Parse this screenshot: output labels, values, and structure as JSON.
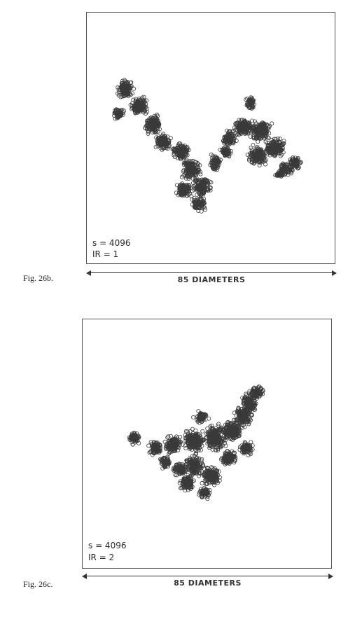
{
  "figures": [
    {
      "id": "26b",
      "label": "Fig. 26b.",
      "s_label": "s = 4096",
      "ir_label": "IR = 1",
      "scale_label": "85 DIAMETERS"
    },
    {
      "id": "26c",
      "label": "Fig. 26c.",
      "s_label": "s = 4096",
      "ir_label": "IR = 2",
      "scale_label": "85 DIAMETERS"
    }
  ],
  "colors": {
    "particle_stroke": "#3a3a3a",
    "frame": "#555555",
    "text": "#2a2a2a"
  }
}
